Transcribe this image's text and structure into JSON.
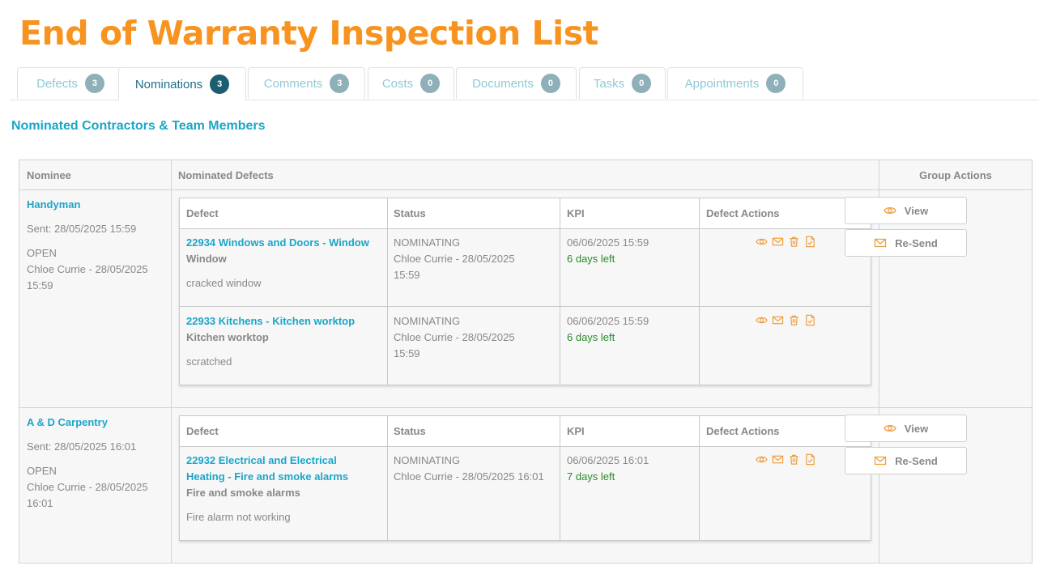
{
  "page": {
    "title": "End of Warranty Inspection List"
  },
  "tabs": [
    {
      "label": "Defects",
      "count": "3"
    },
    {
      "label": "Nominations",
      "count": "3"
    },
    {
      "label": "Comments",
      "count": "3"
    },
    {
      "label": "Costs",
      "count": "0"
    },
    {
      "label": "Documents",
      "count": "0"
    },
    {
      "label": "Tasks",
      "count": "0"
    },
    {
      "label": "Appointments",
      "count": "0"
    }
  ],
  "active_tab": "Nominations",
  "section_title": "Nominated Contractors & Team Members",
  "table": {
    "headers": {
      "nominee": "Nominee",
      "nominated_defects": "Nominated Defects",
      "group_actions": "Group Actions"
    },
    "inner_headers": {
      "defect": "Defect",
      "status": "Status",
      "kpi": "KPI",
      "defect_actions": "Defect Actions"
    },
    "group_buttons": {
      "view": "View",
      "resend": "Re-Send"
    },
    "action_icons": [
      "eye-icon",
      "envelope-icon",
      "trash-icon",
      "document-check-icon"
    ],
    "rows": [
      {
        "name": "Handyman",
        "sent": "Sent: 28/05/2025 15:59",
        "state": "OPEN",
        "by_line1": "Chloe Currie - 28/05/2025",
        "by_line2": "15:59",
        "defects": [
          {
            "title": "22934 Windows and Doors - Window",
            "subtitle": "Window",
            "description": "cracked window",
            "status": "NOMINATING",
            "status_by1": "Chloe Currie - 28/05/2025",
            "status_by2": "15:59",
            "kpi_date": "06/06/2025 15:59",
            "kpi_left": "6 days left"
          },
          {
            "title": "22933 Kitchens - Kitchen worktop",
            "subtitle": "Kitchen worktop",
            "description": "scratched",
            "status": "NOMINATING",
            "status_by1": "Chloe Currie - 28/05/2025",
            "status_by2": "15:59",
            "kpi_date": "06/06/2025 15:59",
            "kpi_left": "6 days left"
          }
        ]
      },
      {
        "name": "A & D Carpentry",
        "sent": "Sent: 28/05/2025 16:01",
        "state": "OPEN",
        "by_line1": "Chloe Currie - 28/05/2025",
        "by_line2": "16:01",
        "defects": [
          {
            "title1": "22932 Electrical and Electrical",
            "title2": "Heating - Fire and smoke alarms",
            "subtitle": "Fire and smoke alarms",
            "description": "Fire alarm not working",
            "status": "NOMINATING",
            "status_by1": "Chloe Currie - 28/05/2025 16:01",
            "kpi_date": "06/06/2025 16:01",
            "kpi_left": "7 days left"
          }
        ]
      }
    ]
  },
  "colors": {
    "title": "#f7931e",
    "accent": "#1aa6c9",
    "icon": "#f0a040",
    "kpi_ok": "#2b8a2b",
    "active_badge": "#1c5d70"
  }
}
